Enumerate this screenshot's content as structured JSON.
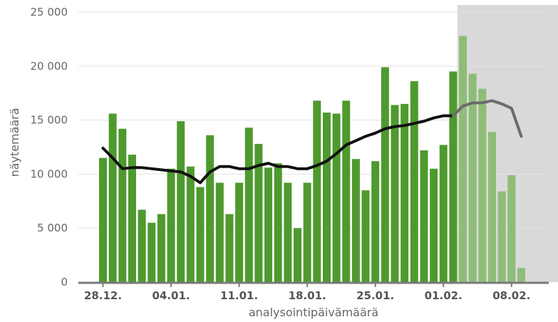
{
  "chart_data": {
    "type": "bar",
    "xlabel": "analysointipäivämäärä",
    "ylabel": "näytemäärä",
    "ylim": [
      0,
      25000
    ],
    "y_ticks": [
      {
        "value": 0,
        "label": "0"
      },
      {
        "value": 5000,
        "label": "5 000"
      },
      {
        "value": 10000,
        "label": "10 000"
      },
      {
        "value": 15000,
        "label": "15 000"
      },
      {
        "value": 20000,
        "label": "20 000"
      },
      {
        "value": 25000,
        "label": "25 000"
      }
    ],
    "x_ticks": [
      {
        "date": "2020-12-28",
        "label": "28.12."
      },
      {
        "date": "2021-01-04",
        "label": "04.01."
      },
      {
        "date": "2021-01-11",
        "label": "11.01."
      },
      {
        "date": "2021-01-18",
        "label": "18.01."
      },
      {
        "date": "2021-01-25",
        "label": "25.01."
      },
      {
        "date": "2021-02-01",
        "label": "01.02."
      },
      {
        "date": "2021-02-08",
        "label": "08.02."
      }
    ],
    "grid": true,
    "first_date": "2020-12-28",
    "preliminary_from": "2021-02-03",
    "colors": {
      "bar": "#4e9a2e",
      "bar_preliminary": "#8fbd78",
      "shade": "#d9d9d9",
      "line": "#111111",
      "line_preliminary": "#6b6b6b",
      "grid": "#e3e3e3",
      "axis": "#7a7a7a"
    },
    "series": [
      {
        "type": "bar",
        "values": [
          11500,
          15600,
          14200,
          11800,
          6700,
          5500,
          6300,
          10500,
          14900,
          10700,
          8800,
          13600,
          9200,
          6300,
          9200,
          14300,
          12800,
          10600,
          11000,
          9200,
          5000,
          9200,
          16800,
          15700,
          15600,
          16800,
          11400,
          8500,
          11200,
          19900,
          16400,
          16500,
          18600,
          12200,
          10500,
          12700,
          19500,
          22800,
          19300,
          17900,
          13900,
          8400,
          9900,
          1300
        ]
      },
      {
        "type": "line",
        "values": [
          12400,
          11500,
          10500,
          10600,
          10600,
          10500,
          10400,
          10300,
          10200,
          9800,
          9200,
          10200,
          10700,
          10700,
          10500,
          10500,
          10800,
          11000,
          10700,
          10700,
          10500,
          10500,
          10800,
          11200,
          11900,
          12700,
          13100,
          13500,
          13800,
          14200,
          14400,
          14500,
          14700,
          14900,
          15200,
          15400,
          15400,
          16300,
          16600,
          16600,
          16800,
          16500,
          16100,
          13500
        ]
      }
    ]
  }
}
